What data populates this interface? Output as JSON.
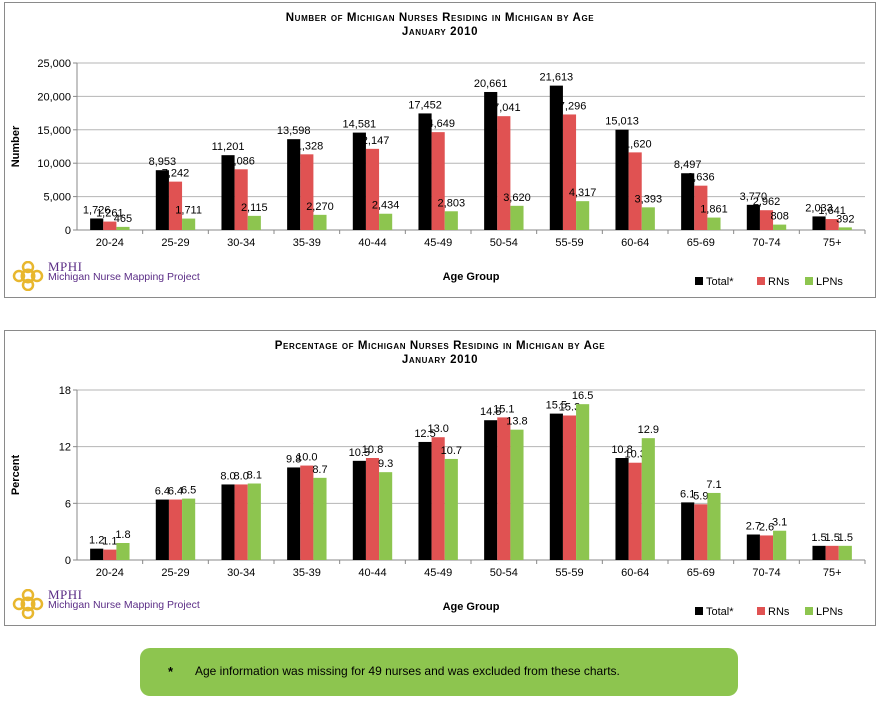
{
  "chart_data": [
    {
      "type": "bar",
      "title": "Number of Michigan Nurses Residing in Michigan by Age",
      "subtitle": "January 2010",
      "xlabel": "Age Group",
      "ylabel": "Number",
      "ylim": [
        0,
        25000
      ],
      "yticks": [
        "0",
        "5,000",
        "10,000",
        "15,000",
        "20,000",
        "25,000"
      ],
      "legend_position": "bottom-right",
      "categories": [
        "20-24",
        "25-29",
        "30-34",
        "35-39",
        "40-44",
        "45-49",
        "50-54",
        "55-59",
        "60-64",
        "65-69",
        "70-74",
        "75+"
      ],
      "series": [
        {
          "name": "Total*",
          "color": "#000000",
          "values": [
            1726,
            8953,
            11201,
            13598,
            14581,
            17452,
            20661,
            21613,
            15013,
            8497,
            3770,
            2033
          ],
          "labels": [
            "1,726",
            "8,953",
            "11,201",
            "13,598",
            "14,581",
            "17,452",
            "20,661",
            "21,613",
            "15,013",
            "8,497",
            "3,770",
            "2,033"
          ]
        },
        {
          "name": "RNs",
          "color": "#e05252",
          "values": [
            1261,
            7242,
            9086,
            11328,
            12147,
            14649,
            17041,
            17296,
            11620,
            6636,
            2962,
            1641
          ],
          "labels": [
            "1,261",
            "7,242",
            "9,086",
            "11,328",
            "12,147",
            "14,649",
            "17,041",
            "17,296",
            "11,620",
            "6,636",
            "2,962",
            "1,641"
          ]
        },
        {
          "name": "LPNs",
          "color": "#8dc54f",
          "values": [
            465,
            1711,
            2115,
            2270,
            2434,
            2803,
            3620,
            4317,
            3393,
            1861,
            808,
            392
          ],
          "labels": [
            "465",
            "1,711",
            "2,115",
            "2,270",
            "2,434",
            "2,803",
            "3,620",
            "4,317",
            "3,393",
            "1,861",
            "808",
            "392"
          ]
        }
      ],
      "grid": true
    },
    {
      "type": "bar",
      "title": "Percentage of Michigan Nurses Residing in Michigan by Age",
      "subtitle": "January 2010",
      "xlabel": "Age Group",
      "ylabel": "Percent",
      "ylim": [
        0,
        18
      ],
      "yticks": [
        "0",
        "6",
        "12",
        "18"
      ],
      "legend_position": "bottom-right",
      "categories": [
        "20-24",
        "25-29",
        "30-34",
        "35-39",
        "40-44",
        "45-49",
        "50-54",
        "55-59",
        "60-64",
        "65-69",
        "70-74",
        "75+"
      ],
      "series": [
        {
          "name": "Total*",
          "color": "#000000",
          "values": [
            1.2,
            6.4,
            8.0,
            9.8,
            10.5,
            12.5,
            14.8,
            15.5,
            10.8,
            6.1,
            2.7,
            1.5
          ],
          "labels": [
            "1.2",
            "6.4",
            "8.0",
            "9.8",
            "10.5",
            "12.5",
            "14.8",
            "15.5",
            "10.8",
            "6.1",
            "2.7",
            "1.5"
          ]
        },
        {
          "name": "RNs",
          "color": "#e05252",
          "values": [
            1.1,
            6.4,
            8.0,
            10.0,
            10.8,
            13.0,
            15.1,
            15.3,
            10.3,
            5.9,
            2.6,
            1.5
          ],
          "labels": [
            "1.1",
            "6.4",
            "8.0",
            "10.0",
            "10.8",
            "13.0",
            "15.1",
            "15.3",
            "10.3",
            "5.9",
            "2.6",
            "1.5"
          ]
        },
        {
          "name": "LPNs",
          "color": "#8dc54f",
          "values": [
            1.8,
            6.5,
            8.1,
            8.7,
            9.3,
            10.7,
            13.8,
            16.5,
            12.9,
            7.1,
            3.1,
            1.5
          ],
          "labels": [
            "1.8",
            "6.5",
            "8.1",
            "8.7",
            "9.3",
            "10.7",
            "13.8",
            "16.5",
            "12.9",
            "7.1",
            "3.1",
            "1.5"
          ]
        }
      ],
      "grid": true
    }
  ],
  "logo": {
    "brand": "MPHI",
    "text": "Michigan Nurse Mapping Project"
  },
  "footnote": {
    "marker": "*",
    "text": "Age information was missing for 49 nurses and was excluded from these charts."
  }
}
